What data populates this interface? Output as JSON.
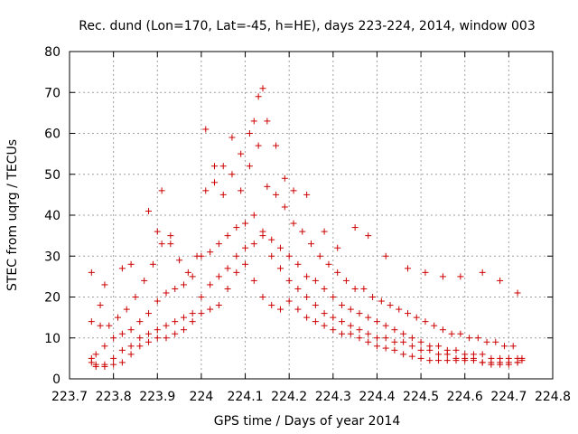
{
  "chart_data": {
    "type": "scatter",
    "title": "Rec. dund (Lon=170, Lat=-45, h=HE), days 223-224, 2014, window 003",
    "xlabel": "GPS time / Days of year 2014",
    "ylabel": "STEC from uqrg / TECUs",
    "xlim": [
      223.7,
      224.8
    ],
    "ylim": [
      0,
      80
    ],
    "xticks": [
      223.7,
      223.8,
      223.9,
      224.0,
      224.1,
      224.2,
      224.3,
      224.4,
      224.5,
      224.6,
      224.7,
      224.8
    ],
    "xtick_labels": [
      "223.7",
      "223.8",
      "223.9",
      "224",
      "224.1",
      "224.2",
      "224.3",
      "224.4",
      "224.5",
      "224.6",
      "224.7",
      "224.8"
    ],
    "yticks": [
      0,
      10,
      20,
      30,
      40,
      50,
      60,
      70,
      80
    ],
    "ytick_labels": [
      "0",
      "10",
      "20",
      "30",
      "40",
      "50",
      "60",
      "70",
      "80"
    ],
    "grid": true,
    "marker": "plus",
    "color": "#cc0000",
    "series": [
      {
        "x": [
          223.75,
          223.76,
          223.78,
          223.8,
          223.82,
          223.84,
          223.86,
          223.88,
          223.9,
          223.92,
          223.94,
          223.96,
          223.98,
          224.0,
          224.02,
          224.04,
          224.06,
          224.08,
          224.1,
          224.12,
          224.14,
          224.16,
          224.18,
          224.2,
          224.22,
          224.24,
          224.26,
          224.28,
          224.3,
          224.32,
          224.34,
          224.36,
          224.38,
          224.4,
          224.42,
          224.44,
          224.46,
          224.48,
          224.5,
          224.52,
          224.54,
          224.56,
          224.58,
          224.6,
          224.62,
          224.64,
          224.66,
          224.68,
          224.7,
          224.72,
          224.73
        ],
        "y": [
          4,
          3.5,
          3.5,
          3.5,
          4,
          6,
          8,
          9,
          10,
          10,
          11,
          12,
          14,
          16,
          17,
          18,
          22,
          26,
          28,
          24,
          20,
          18,
          17,
          19,
          17,
          15,
          14,
          13,
          12,
          11,
          11,
          10,
          9,
          8,
          7.5,
          7,
          6,
          5.5,
          5,
          4.5,
          4.5,
          4.5,
          4.5,
          4.5,
          4.5,
          4,
          3.5,
          3.5,
          3.5,
          4,
          4.5
        ]
      },
      {
        "x": [
          223.75,
          223.76,
          223.78,
          223.8,
          223.82,
          223.84,
          223.86,
          223.88,
          223.9,
          223.92,
          223.94,
          223.96,
          223.98,
          224.0,
          224.02,
          224.04,
          224.06,
          224.08,
          224.1,
          224.12,
          224.14,
          224.16,
          224.18,
          224.2,
          224.22,
          224.24,
          224.26,
          224.28,
          224.3,
          224.32,
          224.34,
          224.36,
          224.38,
          224.4,
          224.42,
          224.44,
          224.46,
          224.48,
          224.5,
          224.52,
          224.54,
          224.56,
          224.58,
          224.6,
          224.62,
          224.64,
          224.66,
          224.68,
          224.7,
          224.72,
          224.73
        ],
        "y": [
          5,
          6,
          8,
          10,
          11,
          12,
          14,
          16,
          19,
          21,
          22,
          23,
          25,
          30,
          31,
          33,
          35,
          37,
          38,
          40,
          36,
          34,
          32,
          30,
          28,
          25,
          24,
          22,
          20,
          18,
          17,
          16,
          15,
          14,
          13,
          12,
          11,
          10,
          9,
          8,
          8,
          7,
          7,
          6,
          6,
          6,
          5,
          5,
          5,
          5,
          5
        ]
      },
      {
        "x": [
          223.75,
          223.77,
          223.79,
          223.81,
          223.83,
          223.85,
          223.87,
          223.89,
          223.91,
          223.93,
          223.95,
          223.97,
          224.01,
          224.03,
          224.05,
          224.07,
          224.09,
          224.11,
          224.13,
          224.15,
          224.17,
          224.19,
          224.21,
          224.23,
          224.25,
          224.27,
          224.29,
          224.31,
          224.33,
          224.35,
          224.37,
          224.39,
          224.41,
          224.43,
          224.45,
          224.47,
          224.49,
          224.51,
          224.53,
          224.55,
          224.57,
          224.59,
          224.61,
          224.63,
          224.65,
          224.67,
          224.69,
          224.71
        ],
        "y": [
          14,
          13,
          13,
          15,
          17,
          20,
          24,
          28,
          33,
          35,
          29,
          26,
          46,
          48,
          45,
          50,
          46,
          52,
          57,
          47,
          45,
          42,
          38,
          36,
          33,
          30,
          28,
          26,
          24,
          22,
          22,
          20,
          19,
          18,
          17,
          16,
          15,
          14,
          13,
          12,
          11,
          11,
          10,
          10,
          9,
          9,
          8,
          8
        ]
      },
      {
        "x": [
          223.75,
          223.77,
          223.78,
          223.82,
          223.84,
          223.88,
          223.9,
          223.91,
          223.93,
          223.99,
          224.01,
          224.03,
          224.05,
          224.07,
          224.09,
          224.11,
          224.12,
          224.13,
          224.14,
          224.15,
          224.17,
          224.19,
          224.21,
          224.24,
          224.28,
          224.31,
          224.35,
          224.38,
          224.42,
          224.47,
          224.51,
          224.55,
          224.59,
          224.64,
          224.68,
          224.72
        ],
        "y": [
          26,
          18,
          23,
          27,
          28,
          41,
          36,
          46,
          33,
          30,
          61,
          52,
          52,
          59,
          55,
          60,
          63,
          69,
          71,
          63,
          57,
          49,
          46,
          45,
          36,
          32,
          37,
          35,
          30,
          27,
          26,
          25,
          25,
          26,
          24,
          21
        ]
      },
      {
        "x": [
          223.76,
          223.78,
          223.8,
          223.82,
          223.84,
          223.86,
          223.88,
          223.9,
          223.92,
          223.94,
          223.96,
          223.98,
          224.0,
          224.02,
          224.04,
          224.06,
          224.08,
          224.1,
          224.12,
          224.14,
          224.16,
          224.18,
          224.2,
          224.22,
          224.24,
          224.26,
          224.28,
          224.3,
          224.32,
          224.34,
          224.36,
          224.38,
          224.4,
          224.42,
          224.44,
          224.46,
          224.48,
          224.5,
          224.52,
          224.54,
          224.56,
          224.58,
          224.6,
          224.62,
          224.64,
          224.66,
          224.68,
          224.7,
          224.72
        ],
        "y": [
          3,
          3,
          5,
          7,
          8,
          10,
          11,
          12,
          13,
          14,
          15,
          16,
          20,
          23,
          25,
          27,
          30,
          32,
          33,
          35,
          30,
          27,
          24,
          22,
          20,
          18,
          16,
          15,
          14,
          13,
          12,
          11,
          10,
          10,
          9,
          9,
          8,
          7,
          7,
          6,
          6,
          5,
          5,
          5,
          4,
          4,
          4,
          4,
          4
        ]
      }
    ]
  }
}
